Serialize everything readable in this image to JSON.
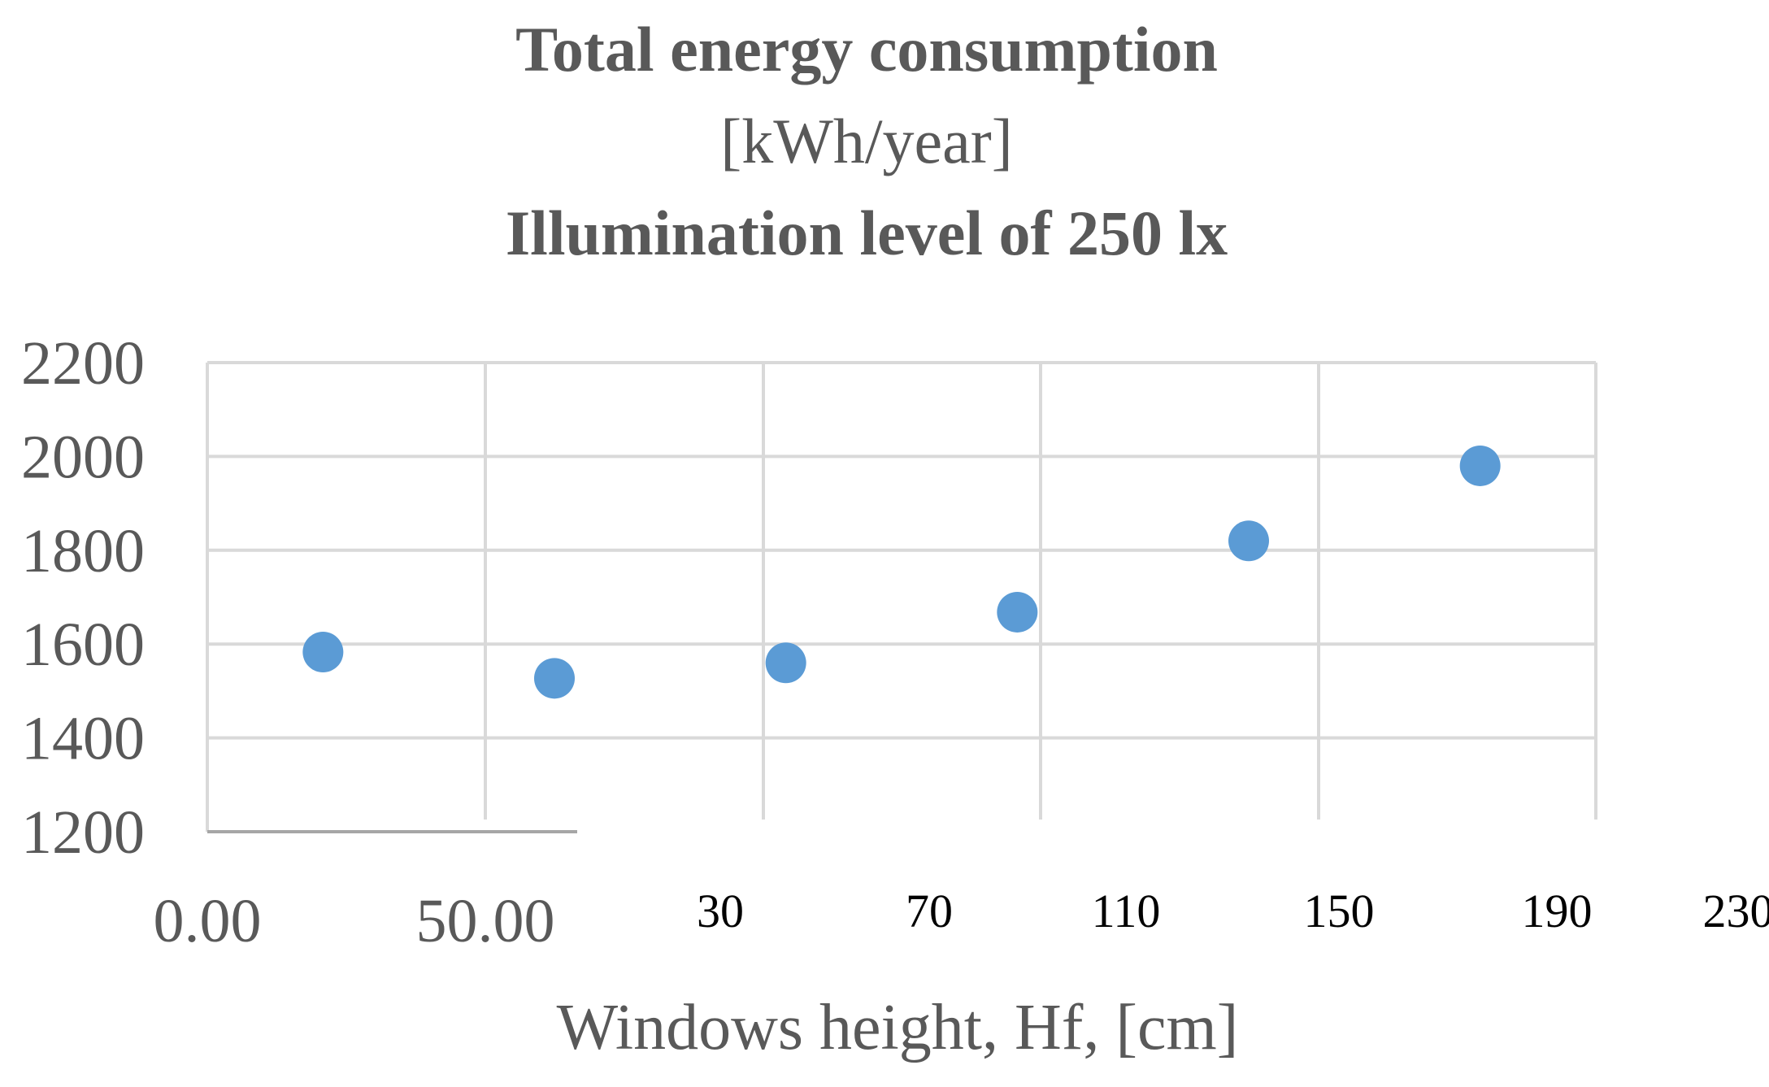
{
  "chart_data": {
    "type": "scatter",
    "title": {
      "line1": "Total energy consumption",
      "line2": "[kWh/year]",
      "line3": "Illumination level of 250 lx"
    },
    "xlabel": "Windows height, Hf, [cm]",
    "ylabel": "",
    "ylim": [
      1200,
      2200
    ],
    "y_ticks": [
      "1200",
      "1400",
      "1600",
      "1800",
      "2000",
      "2200"
    ],
    "x_ticks_primary": [
      "0.00",
      "50.00"
    ],
    "x_ticks_secondary": [
      "30",
      "70",
      "110",
      "150",
      "190",
      "230"
    ],
    "grid": true,
    "legend": "none",
    "point_color": "#5b9bd5",
    "series": [
      {
        "points": [
          {
            "x": 30,
            "y": 1583
          },
          {
            "x": 70,
            "y": 1527
          },
          {
            "x": 110,
            "y": 1560
          },
          {
            "x": 150,
            "y": 1668
          },
          {
            "x": 190,
            "y": 1820
          },
          {
            "x": 230,
            "y": 1980
          }
        ]
      }
    ]
  }
}
